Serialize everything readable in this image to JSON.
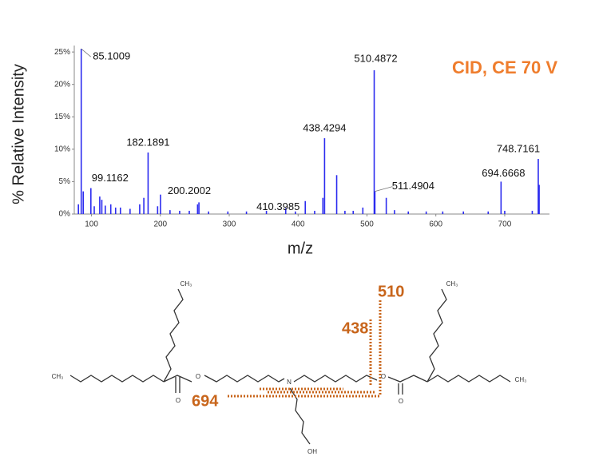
{
  "chart_data": {
    "type": "spectrum",
    "title": "CID, CE 70 V",
    "y_label": "% Relative Intensity",
    "x_label": "m/z",
    "color": "#2b2bef",
    "x": [
      85.1009,
      99.1162,
      182.1891,
      200.2002,
      410.3985,
      438.4294,
      510.4872,
      511.4904,
      694.6668,
      748.7161
    ],
    "values": [
      25.5,
      4,
      9.5,
      3,
      2,
      11.7,
      22.2,
      3.5,
      5,
      8.5
    ],
    "minor_x": [
      81,
      88,
      104,
      112,
      115,
      120,
      128,
      135,
      142,
      156,
      170,
      176,
      196,
      214,
      228,
      242,
      254,
      256,
      270,
      298,
      325,
      354,
      382,
      396,
      424,
      436,
      456,
      468,
      480,
      494,
      528,
      540,
      560,
      586,
      610,
      640,
      676,
      700,
      740,
      750
    ],
    "minor_values": [
      1.5,
      3.5,
      1.2,
      2.7,
      2.2,
      1.3,
      1.5,
      1,
      1,
      0.8,
      1.5,
      2.5,
      1.2,
      0.6,
      0.5,
      0.5,
      1.5,
      1.8,
      0.4,
      0.4,
      0.4,
      0.5,
      0.9,
      0.4,
      0.5,
      2.5,
      6,
      0.5,
      0.5,
      1,
      2.5,
      0.6,
      0.4,
      0.4,
      0.4,
      0.4,
      0.4,
      0.5,
      0.5,
      4.5
    ],
    "xlim": [
      75,
      765
    ],
    "ylim": [
      0,
      26
    ],
    "xticks": [
      100,
      200,
      300,
      400,
      500,
      600,
      700
    ],
    "yticks": [
      {
        "value": 0,
        "label": "0%"
      },
      {
        "value": 5,
        "label": "5%"
      },
      {
        "value": 10,
        "label": "10%"
      },
      {
        "value": 15,
        "label": "15%"
      },
      {
        "value": 20,
        "label": "20%"
      },
      {
        "value": 25,
        "label": "25%"
      }
    ]
  },
  "structure": {
    "atoms": [
      "CH₃",
      "CH₃",
      "O",
      "O",
      "N",
      "O",
      "O",
      "CH₃",
      "CH₃",
      "OH"
    ],
    "fragments": [
      "510",
      "438",
      "694"
    ]
  }
}
